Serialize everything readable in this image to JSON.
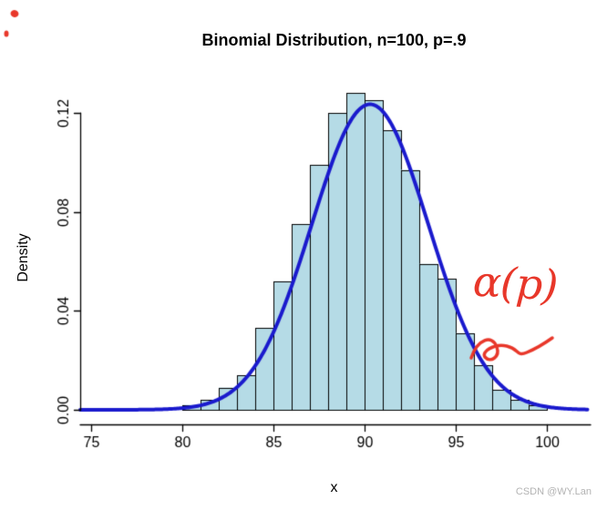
{
  "watermark": "CSDN @WY.Lan",
  "annotation": {
    "text": "α(p)",
    "color": "#e8372a",
    "has_underline_squiggle": true,
    "stray_marks_top_left": true
  },
  "chart_data": {
    "type": "histogram_with_density_curve",
    "title": "Binomial Distribution, n=100, p=.9",
    "xlabel": "x",
    "ylabel": "Density",
    "xlim": [
      74.4,
      102.25
    ],
    "ylim": [
      0,
      0.134
    ],
    "x_ticks": [
      75,
      80,
      85,
      90,
      95,
      100
    ],
    "y_ticks": [
      {
        "value": 0.0,
        "label": "0.00"
      },
      {
        "value": 0.04,
        "label": "0.04"
      },
      {
        "value": 0.08,
        "label": "0.08"
      },
      {
        "value": 0.12,
        "label": "0.12"
      }
    ],
    "grid": false,
    "legend": null,
    "histogram": {
      "bin_start": 80,
      "bin_width": 1,
      "densities": [
        0.002,
        0.004,
        0.009,
        0.014,
        0.033,
        0.052,
        0.075,
        0.099,
        0.12,
        0.128,
        0.125,
        0.113,
        0.097,
        0.059,
        0.053,
        0.031,
        0.018,
        0.008,
        0.004,
        0.002
      ],
      "fill": "#b5dbe6",
      "stroke": "#000000"
    },
    "curve": {
      "shape": "normal",
      "mean": 90.3,
      "sd": 3.2,
      "peak_density": 0.1235,
      "color": "#1a1acd",
      "line_width": 4
    }
  }
}
